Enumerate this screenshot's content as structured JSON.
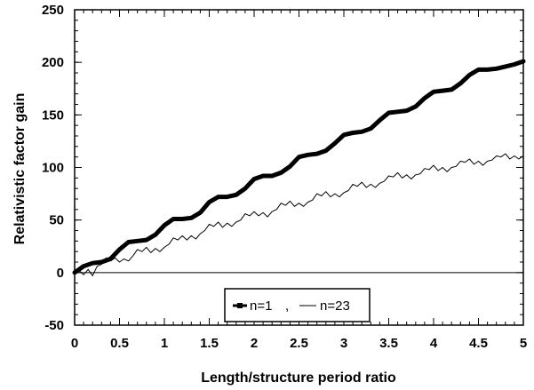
{
  "chart_data": {
    "type": "line",
    "title": "",
    "xlabel": "Length/structure period ratio",
    "ylabel": "Relativistic factor gain",
    "xlim": [
      0,
      5
    ],
    "ylim": [
      -50,
      250
    ],
    "xticks": [
      0,
      0.5,
      1,
      1.5,
      2,
      2.5,
      3,
      3.5,
      4,
      4.5,
      5
    ],
    "xtick_labels": [
      "0",
      "0.5",
      "1",
      "1.5",
      "2",
      "2.5",
      "3",
      "3.5",
      "4",
      "4.5",
      "5"
    ],
    "yticks": [
      -50,
      0,
      50,
      100,
      150,
      200,
      250
    ],
    "ytick_labels": [
      "-50",
      "0",
      "50",
      "100",
      "150",
      "200",
      "250"
    ],
    "grid": false,
    "zero_line": true,
    "legend": {
      "placement": "bottom-center",
      "separator": ",",
      "box": true
    },
    "series": [
      {
        "name": "n=1",
        "style": "thick-marker",
        "color": "#000000",
        "x": [
          0,
          0.1,
          0.2,
          0.3,
          0.4,
          0.5,
          0.6,
          0.7,
          0.8,
          0.9,
          1.0,
          1.1,
          1.2,
          1.3,
          1.4,
          1.5,
          1.6,
          1.7,
          1.8,
          1.9,
          2.0,
          2.1,
          2.2,
          2.3,
          2.4,
          2.5,
          2.6,
          2.7,
          2.8,
          2.9,
          3.0,
          3.1,
          3.2,
          3.3,
          3.4,
          3.5,
          3.6,
          3.7,
          3.8,
          3.9,
          4.0,
          4.1,
          4.2,
          4.3,
          4.4,
          4.5,
          4.6,
          4.7,
          4.8,
          4.9,
          5.0
        ],
        "y": [
          0,
          6,
          9,
          10,
          13,
          22,
          29,
          30,
          31,
          36,
          45,
          51,
          51,
          52,
          57,
          67,
          72,
          72,
          74,
          80,
          89,
          92,
          92,
          95,
          101,
          110,
          112,
          113,
          116,
          123,
          131,
          133,
          134,
          137,
          145,
          152,
          153,
          154,
          158,
          166,
          172,
          173,
          174,
          180,
          188,
          193,
          193,
          194,
          196,
          198,
          201
        ]
      },
      {
        "name": "n=23",
        "style": "thin-oscillating",
        "color": "#000000",
        "x": [
          0,
          0.05,
          0.1,
          0.15,
          0.2,
          0.25,
          0.3,
          0.35,
          0.4,
          0.45,
          0.5,
          0.55,
          0.6,
          0.65,
          0.7,
          0.75,
          0.8,
          0.85,
          0.9,
          0.95,
          1.0,
          1.05,
          1.1,
          1.15,
          1.2,
          1.25,
          1.3,
          1.35,
          1.4,
          1.45,
          1.5,
          1.55,
          1.6,
          1.65,
          1.7,
          1.75,
          1.8,
          1.85,
          1.9,
          1.95,
          2.0,
          2.05,
          2.1,
          2.15,
          2.2,
          2.25,
          2.3,
          2.35,
          2.4,
          2.45,
          2.5,
          2.55,
          2.6,
          2.65,
          2.7,
          2.75,
          2.8,
          2.85,
          2.9,
          2.95,
          3.0,
          3.05,
          3.1,
          3.15,
          3.2,
          3.25,
          3.3,
          3.35,
          3.4,
          3.45,
          3.5,
          3.55,
          3.6,
          3.65,
          3.7,
          3.75,
          3.8,
          3.85,
          3.9,
          3.95,
          4.0,
          4.05,
          4.1,
          4.15,
          4.2,
          4.25,
          4.3,
          4.35,
          4.4,
          4.45,
          4.5,
          4.55,
          4.6,
          4.65,
          4.7,
          4.75,
          4.8,
          4.85,
          4.9,
          4.95,
          5.0
        ],
        "y": [
          0,
          2,
          -2,
          3,
          -3,
          6,
          8,
          14,
          11,
          14,
          10,
          13,
          11,
          16,
          22,
          20,
          24,
          19,
          23,
          20,
          24,
          27,
          33,
          31,
          35,
          31,
          35,
          32,
          37,
          40,
          46,
          44,
          48,
          43,
          47,
          44,
          48,
          50,
          56,
          54,
          58,
          54,
          57,
          53,
          58,
          60,
          66,
          64,
          68,
          63,
          66,
          63,
          67,
          69,
          75,
          73,
          77,
          72,
          75,
          72,
          76,
          78,
          84,
          82,
          86,
          81,
          84,
          81,
          85,
          87,
          92,
          91,
          95,
          90,
          93,
          89,
          93,
          94,
          99,
          98,
          102,
          97,
          100,
          96,
          100,
          101,
          106,
          105,
          108,
          103,
          106,
          102,
          106,
          107,
          111,
          110,
          113,
          108,
          111,
          108,
          111
        ]
      }
    ]
  }
}
